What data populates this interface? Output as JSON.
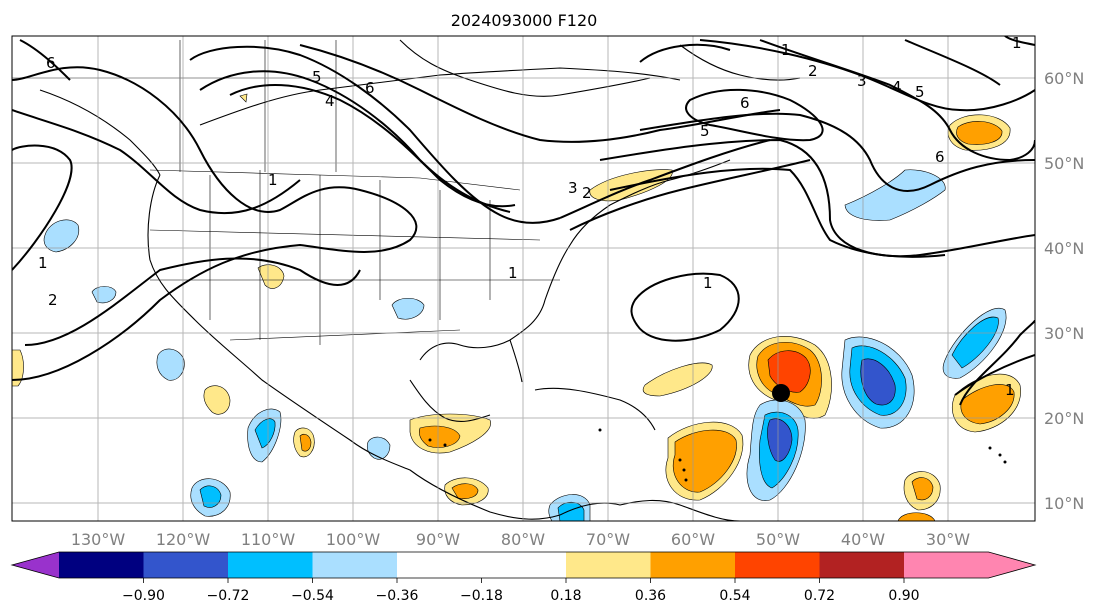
{
  "map": {
    "title": "2024093000 F120",
    "longitude_labels": [
      "130°W",
      "120°W",
      "110°W",
      "100°W",
      "90°W",
      "80°W",
      "70°W",
      "60°W",
      "50°W",
      "40°W",
      "30°W"
    ],
    "latitude_labels": [
      "60°N",
      "50°N",
      "40°N",
      "30°N",
      "20°N",
      "10°N"
    ],
    "contour_labels": [
      "1",
      "2",
      "3",
      "4",
      "5",
      "6"
    ],
    "storm_marker": "black-dot-near-50W-23N"
  },
  "colorbar": {
    "ticks": [
      "−0.90",
      "−0.72",
      "−0.54",
      "−0.36",
      "−0.18",
      "0.18",
      "0.36",
      "0.54",
      "0.72",
      "0.90"
    ],
    "colors": [
      "#9932cc",
      "#000080",
      "#3355cc",
      "#00bfff",
      "#aadfff",
      "#ffffff",
      "#ffe88a",
      "#ffa000",
      "#ff4400",
      "#b22222",
      "#ff85b0"
    ]
  }
}
